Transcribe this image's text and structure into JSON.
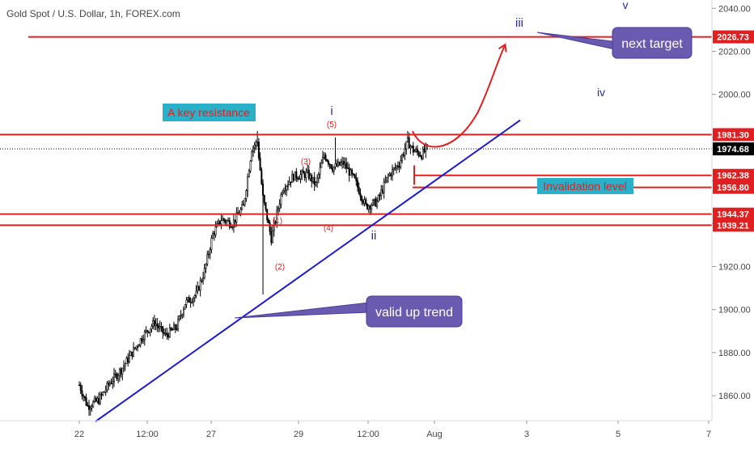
{
  "header": {
    "symbol_title": "Gold Spot / U.S. Dollar, 1h, FOREX.com"
  },
  "chart_data": {
    "type": "candlestick",
    "title": "Gold Spot / U.S. Dollar, 1h, FOREX.com",
    "x_ticks": [
      "22",
      "12:00",
      "27",
      "29",
      "12:00",
      "Aug",
      "3",
      "5",
      "7"
    ],
    "y_ticks": [
      1860,
      1880,
      1900,
      1920,
      1940,
      1960,
      1980,
      2000,
      2020,
      2040
    ],
    "y_tick_labels": [
      "1860.00",
      "1880.00",
      "1900.00",
      "1920.00",
      "1940.00",
      "1960.00",
      "1980.00",
      "2000.00",
      "2020.00",
      "2040.00"
    ],
    "ylim": [
      1848,
      2043
    ],
    "grid": false,
    "last_price": {
      "value": 1974.68,
      "label": "1974.68"
    },
    "price_path": [
      [
        0,
        1865
      ],
      [
        6,
        1855
      ],
      [
        14,
        1858
      ],
      [
        22,
        1866
      ],
      [
        30,
        1872
      ],
      [
        38,
        1880
      ],
      [
        46,
        1888
      ],
      [
        54,
        1894
      ],
      [
        62,
        1888
      ],
      [
        70,
        1892
      ],
      [
        76,
        1903
      ],
      [
        84,
        1907
      ],
      [
        90,
        1918
      ],
      [
        96,
        1935
      ],
      [
        102,
        1942
      ],
      [
        110,
        1940
      ],
      [
        118,
        1948
      ],
      [
        124,
        1975
      ],
      [
        128,
        1978
      ],
      [
        132,
        1952
      ],
      [
        138,
        1933
      ],
      [
        146,
        1956
      ],
      [
        154,
        1962
      ],
      [
        164,
        1963
      ],
      [
        170,
        1958
      ],
      [
        176,
        1972
      ],
      [
        182,
        1966
      ],
      [
        190,
        1968
      ],
      [
        198,
        1960
      ],
      [
        206,
        1948
      ],
      [
        214,
        1950
      ],
      [
        222,
        1962
      ],
      [
        230,
        1968
      ],
      [
        236,
        1978
      ],
      [
        240,
        1974
      ],
      [
        246,
        1972
      ],
      [
        250,
        1975
      ]
    ],
    "levels": [
      {
        "value": 2026.73,
        "label": "2026.73",
        "color": "#e02020"
      },
      {
        "value": 1981.3,
        "label": "1981.30",
        "color": "#e02020"
      },
      {
        "value": 1962.38,
        "label": "1962.38",
        "color": "#e02020"
      },
      {
        "value": 1956.8,
        "label": "1956.80",
        "color": "#e02020"
      },
      {
        "value": 1944.37,
        "label": "1944.37",
        "color": "#e02020"
      },
      {
        "value": 1939.21,
        "label": "1939.21",
        "color": "#e02020"
      }
    ],
    "wave_labels": [
      {
        "text": "i",
        "color": "#2a2aa8"
      },
      {
        "text": "ii",
        "color": "#2a2aa8"
      },
      {
        "text": "iii",
        "color": "#2a2aa8"
      },
      {
        "text": "iv",
        "color": "#2a2aa8"
      },
      {
        "text": "v",
        "color": "#2a2aa8"
      },
      {
        "text": "(1)",
        "color": "#e02020"
      },
      {
        "text": "(2)",
        "color": "#e02020"
      },
      {
        "text": "(3)",
        "color": "#e02020"
      },
      {
        "text": "(4)",
        "color": "#e02020"
      },
      {
        "text": "(5)",
        "color": "#e02020"
      }
    ],
    "annotations": [
      {
        "text": "A key resistance",
        "bg": "#2ab0c8",
        "fg": "#e02020"
      },
      {
        "text": "Invalidation level",
        "bg": "#2ab0c8",
        "fg": "#e02020"
      },
      {
        "text": "next target",
        "bg": "#6a5bb0",
        "fg": "#ffffff"
      },
      {
        "text": "valid up trend",
        "bg": "#6a5bb0",
        "fg": "#ffffff"
      }
    ],
    "colors": {
      "level": "#e02020",
      "trend": "#1a1ad0",
      "candle": "#000000",
      "projection": "#e02020"
    }
  }
}
